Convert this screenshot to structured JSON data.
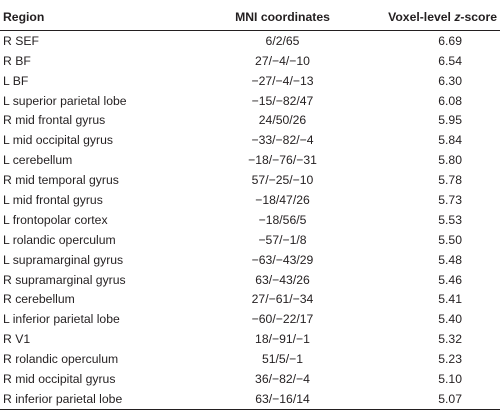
{
  "table": {
    "headers": {
      "region": "Region",
      "coords": "MNI coordinates",
      "zscore_prefix": "Voxel-level ",
      "zscore_italic": "z",
      "zscore_suffix": "-score"
    },
    "rows": [
      {
        "region": "R SEF",
        "coords": "6/2/65",
        "zscore": "6.69"
      },
      {
        "region": "R BF",
        "coords": "27/−4/−10",
        "zscore": "6.54"
      },
      {
        "region": "L BF",
        "coords": "−27/−4/−13",
        "zscore": "6.30"
      },
      {
        "region": "L superior parietal lobe",
        "coords": "−15/−82/47",
        "zscore": "6.08"
      },
      {
        "region": "R mid frontal gyrus",
        "coords": "24/50/26",
        "zscore": "5.95"
      },
      {
        "region": "L mid occipital gyrus",
        "coords": "−33/−82/−4",
        "zscore": "5.84"
      },
      {
        "region": "L cerebellum",
        "coords": "−18/−76/−31",
        "zscore": "5.80"
      },
      {
        "region": "R mid temporal gyrus",
        "coords": "57/−25/−10",
        "zscore": "5.78"
      },
      {
        "region": "L mid frontal gyrus",
        "coords": "−18/47/26",
        "zscore": "5.73"
      },
      {
        "region": "L frontopolar cortex",
        "coords": "−18/56/5",
        "zscore": "5.53"
      },
      {
        "region": "L rolandic operculum",
        "coords": "−57/−1/8",
        "zscore": "5.50"
      },
      {
        "region": "L supramarginal gyrus",
        "coords": "−63/−43/29",
        "zscore": "5.48"
      },
      {
        "region": "R supramarginal gyrus",
        "coords": "63/−43/26",
        "zscore": "5.46"
      },
      {
        "region": "R cerebellum",
        "coords": "27/−61/−34",
        "zscore": "5.41"
      },
      {
        "region": "L inferior parietal lobe",
        "coords": "−60/−22/17",
        "zscore": "5.40"
      },
      {
        "region": "R V1",
        "coords": "18/−91/−1",
        "zscore": "5.32"
      },
      {
        "region": "R rolandic operculum",
        "coords": "51/5/−1",
        "zscore": "5.23"
      },
      {
        "region": "R mid occipital gyrus",
        "coords": "36/−82/−4",
        "zscore": "5.10"
      },
      {
        "region": "R inferior parietal lobe",
        "coords": "63/−16/14",
        "zscore": "5.07"
      }
    ]
  }
}
